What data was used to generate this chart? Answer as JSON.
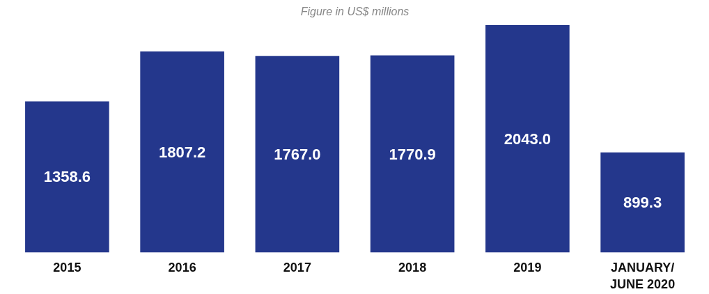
{
  "chart_data": {
    "type": "bar",
    "subtitle": "Figure in US$ millions",
    "categories": [
      "2015",
      "2016",
      "2017",
      "2018",
      "2019",
      "JANUARY/\nJUNE 2020"
    ],
    "values": [
      1358.6,
      1807.2,
      1767.0,
      1770.9,
      2043.0,
      899.3
    ],
    "value_labels": [
      "1358.6",
      "1807.2",
      "1767.0",
      "1770.9",
      "2043.0",
      "899.3"
    ],
    "color": "#24378c"
  }
}
